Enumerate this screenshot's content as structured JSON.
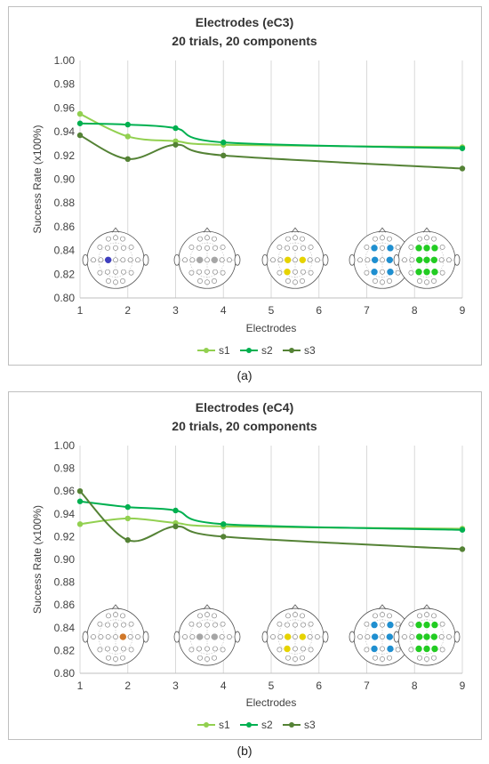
{
  "chart_data": [
    {
      "type": "line",
      "title": "Electrodes (eC3)",
      "subtitle": "20 trials, 20 components",
      "xlabel": "Electrodes",
      "ylabel": "Success Rate (x100%)",
      "xlim": [
        1,
        9
      ],
      "ylim": [
        0.8,
        1.0
      ],
      "xticks": [
        "1",
        "2",
        "3",
        "4",
        "5",
        "6",
        "7",
        "8",
        "9"
      ],
      "yticks": [
        "0.80",
        "0.82",
        "0.84",
        "0.86",
        "0.88",
        "0.90",
        "0.92",
        "0.94",
        "0.96",
        "0.98",
        "1.00"
      ],
      "grid": "vertical",
      "legend_position": "bottom",
      "x": [
        1,
        2,
        3,
        4,
        9
      ],
      "series": [
        {
          "name": "s1",
          "color": "#92d050",
          "values": [
            0.955,
            0.936,
            0.932,
            0.929,
            0.927
          ]
        },
        {
          "name": "s2",
          "color": "#00b050",
          "values": [
            0.947,
            0.946,
            0.943,
            0.931,
            0.926
          ]
        },
        {
          "name": "s3",
          "color": "#548235",
          "values": [
            0.937,
            0.917,
            0.929,
            0.92,
            0.909
          ]
        }
      ],
      "electrode_maps": [
        {
          "n": 1,
          "color": "#3f3fbf"
        },
        {
          "n": 2,
          "color": "#a6a6a6"
        },
        {
          "n": 4,
          "color": "#e6d300"
        },
        {
          "n": 6,
          "color": "#1f8fd0"
        },
        {
          "n": 9,
          "color": "#22cc22"
        }
      ],
      "caption": "(a)"
    },
    {
      "type": "line",
      "title": "Electrodes (eC4)",
      "subtitle": "20 trials, 20 components",
      "xlabel": "Electrodes",
      "ylabel": "Success Rate (x100%)",
      "xlim": [
        1,
        9
      ],
      "ylim": [
        0.8,
        1.0
      ],
      "xticks": [
        "1",
        "2",
        "3",
        "4",
        "5",
        "6",
        "7",
        "8",
        "9"
      ],
      "yticks": [
        "0.80",
        "0.82",
        "0.84",
        "0.86",
        "0.88",
        "0.90",
        "0.92",
        "0.94",
        "0.96",
        "0.98",
        "1.00"
      ],
      "grid": "vertical",
      "legend_position": "bottom",
      "x": [
        1,
        2,
        3,
        4,
        9
      ],
      "series": [
        {
          "name": "s1",
          "color": "#92d050",
          "values": [
            0.931,
            0.936,
            0.932,
            0.929,
            0.927
          ]
        },
        {
          "name": "s2",
          "color": "#00b050",
          "values": [
            0.951,
            0.946,
            0.943,
            0.931,
            0.926
          ]
        },
        {
          "name": "s3",
          "color": "#548235",
          "values": [
            0.96,
            0.917,
            0.929,
            0.92,
            0.909
          ]
        }
      ],
      "electrode_maps": [
        {
          "n": 1,
          "color": "#d0782a"
        },
        {
          "n": 2,
          "color": "#a6a6a6"
        },
        {
          "n": 4,
          "color": "#e6d300"
        },
        {
          "n": 6,
          "color": "#1f8fd0"
        },
        {
          "n": 9,
          "color": "#22cc22"
        }
      ],
      "caption": "(b)"
    }
  ]
}
